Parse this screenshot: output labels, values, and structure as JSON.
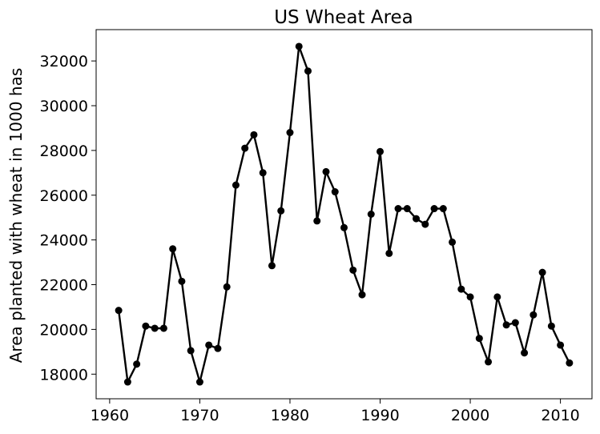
{
  "chart_data": {
    "type": "line",
    "title": "US Wheat Area",
    "xlabel": "",
    "ylabel": "Area planted with wheat in 1000 has",
    "xlim": [
      1958.5,
      2013.5
    ],
    "ylim": [
      16900,
      33400
    ],
    "xticks": [
      1960,
      1970,
      1980,
      1990,
      2000,
      2010
    ],
    "yticks": [
      18000,
      20000,
      22000,
      24000,
      26000,
      28000,
      30000,
      32000
    ],
    "grid": false,
    "series": [
      {
        "name": "US Wheat Area",
        "color": "#000000",
        "marker": "circle",
        "x": [
          1961,
          1962,
          1963,
          1964,
          1965,
          1966,
          1967,
          1968,
          1969,
          1970,
          1971,
          1972,
          1973,
          1974,
          1975,
          1976,
          1977,
          1978,
          1979,
          1980,
          1981,
          1982,
          1983,
          1984,
          1985,
          1986,
          1987,
          1988,
          1989,
          1990,
          1991,
          1992,
          1993,
          1994,
          1995,
          1996,
          1997,
          1998,
          1999,
          2000,
          2001,
          2002,
          2003,
          2004,
          2005,
          2006,
          2007,
          2008,
          2009,
          2010,
          2011
        ],
        "values": [
          20850,
          17650,
          18450,
          20150,
          20050,
          20050,
          23600,
          22150,
          19050,
          17650,
          19300,
          19150,
          21900,
          26450,
          28100,
          28700,
          27000,
          22850,
          25300,
          28800,
          32650,
          31550,
          24850,
          27050,
          26150,
          24550,
          22650,
          21550,
          25150,
          27950,
          23400,
          25400,
          25400,
          24950,
          24700,
          25400,
          25400,
          23900,
          21800,
          21450,
          19600,
          18550,
          21450,
          20200,
          20300,
          18950,
          20650,
          22550,
          20150,
          19300,
          18500
        ]
      }
    ]
  }
}
